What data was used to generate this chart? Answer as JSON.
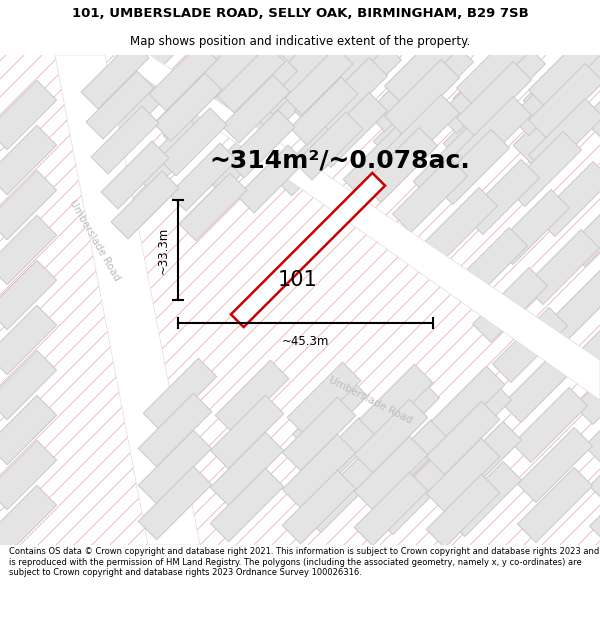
{
  "title_line1": "101, UMBERSLADE ROAD, SELLY OAK, BIRMINGHAM, B29 7SB",
  "title_line2": "Map shows position and indicative extent of the property.",
  "area_text": "~314m²/~0.078ac.",
  "property_number": "101",
  "width_label": "~45.3m",
  "height_label": "~33.3m",
  "road_label": "Umberslade Road",
  "footer_text": "Contains OS data © Crown copyright and database right 2021. This information is subject to Crown copyright and database rights 2023 and is reproduced with the permission of HM Land Registry. The polygons (including the associated geometry, namely x, y co-ordinates) are subject to Crown copyright and database rights 2023 Ordnance Survey 100026316.",
  "map_bg": "#f7f7f7",
  "block_color": "#e4e4e4",
  "block_edge": "#c8c8c8",
  "road_color": "#ffffff",
  "hatch_color": "#f0b0b0",
  "property_fill": "#ffffff",
  "property_edge": "#cc0000",
  "title_bg": "#ffffff",
  "footer_bg": "#ffffff",
  "road_text_color": "#bbbbbb",
  "dim_color": "#000000",
  "title_fontsize": 9.5,
  "subtitle_fontsize": 8.5,
  "area_fontsize": 18,
  "footer_fontsize": 6.0
}
